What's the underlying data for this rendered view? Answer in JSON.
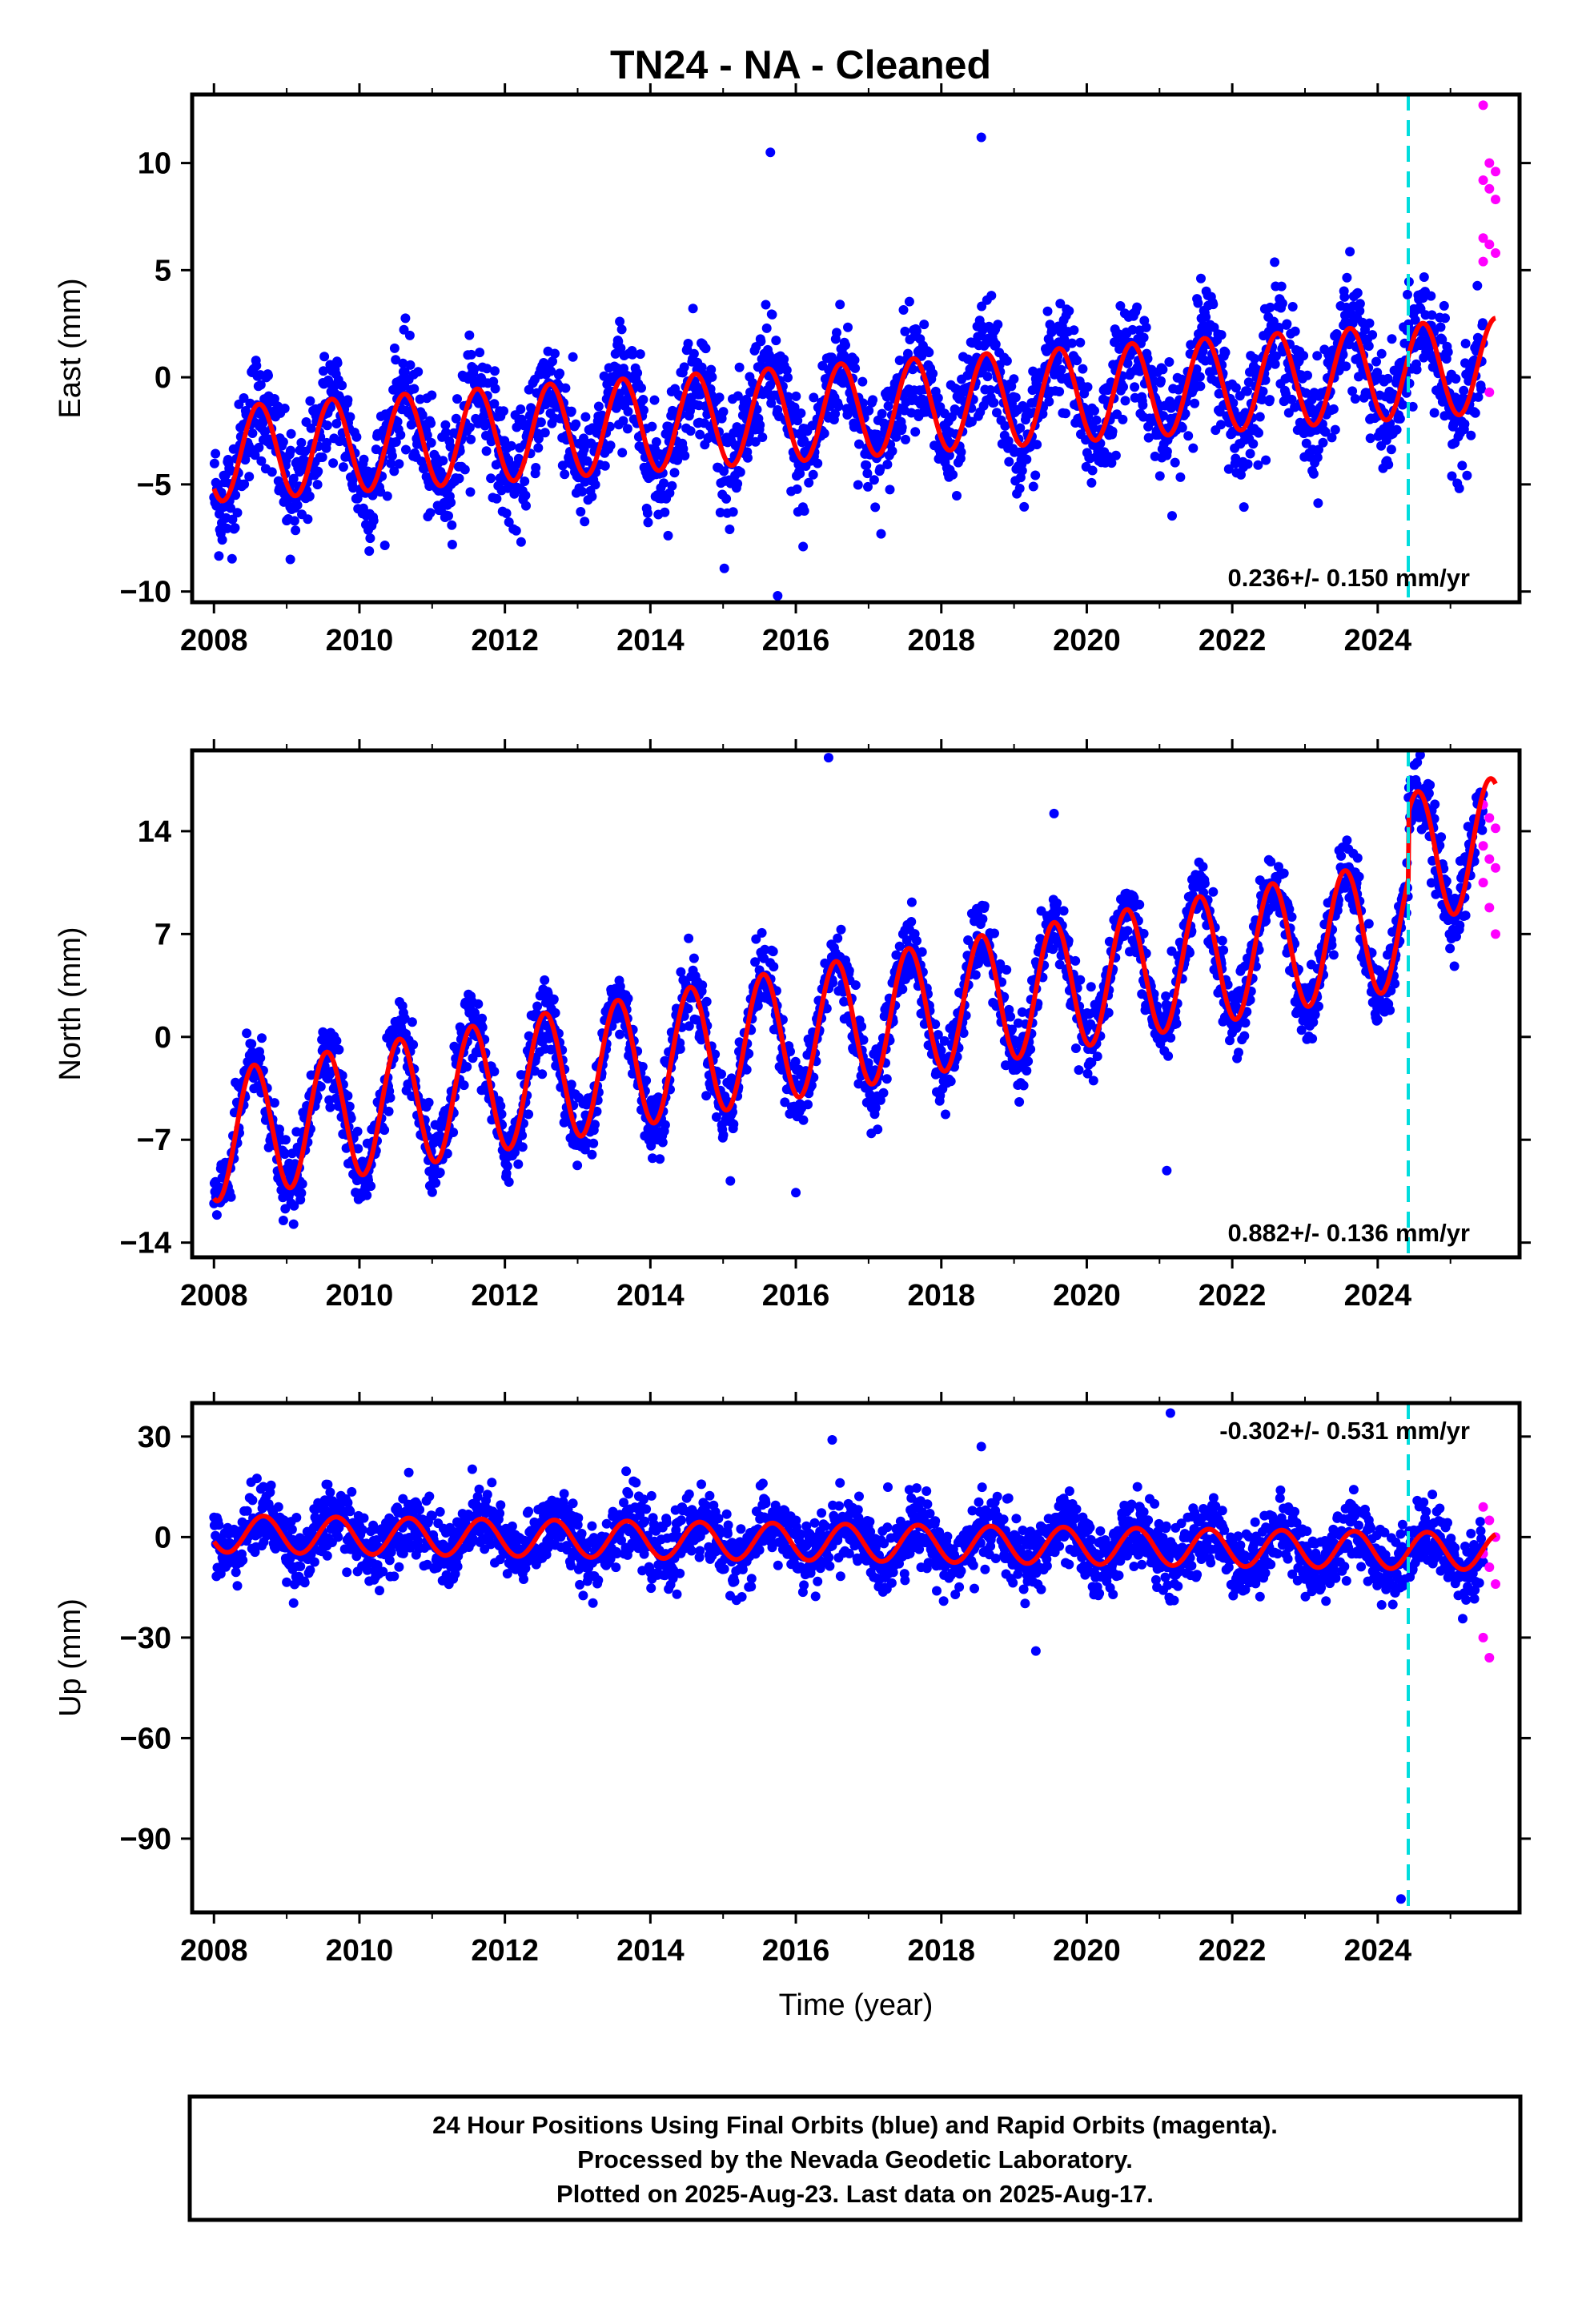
{
  "title": "TN24  - NA - Cleaned",
  "footer": {
    "line1": "24 Hour Positions Using Final Orbits (blue) and Rapid Orbits (magenta).",
    "line2": "Processed by the Nevada Geodetic Laboratory.",
    "line3": "Plotted on 2025-Aug-23. Last data on 2025-Aug-17."
  },
  "colors": {
    "final": "#0000ff",
    "rapid": "#ff00ff",
    "model": "#ff0000",
    "event": "#00dddd"
  },
  "chart_data": [
    {
      "type": "scatter",
      "component": "east",
      "ylabel": "East (mm)",
      "xlabel": "",
      "xlim": [
        2007.7,
        2025.95
      ],
      "ylim": [
        -10.5,
        13.2
      ],
      "xticks": [
        2008,
        2010,
        2012,
        2014,
        2016,
        2018,
        2020,
        2022,
        2024
      ],
      "yticks": [
        -10,
        -5,
        0,
        5,
        10
      ],
      "xtick_labels": [
        "2008",
        "2010",
        "2012",
        "2014",
        "2016",
        "2018",
        "2020",
        "2022",
        "2024"
      ],
      "ytick_labels": [
        "−10",
        "−5",
        "0",
        "5",
        "10"
      ],
      "rate_label": "0.236+/- 0.150 mm/yr",
      "rate_position": "bottom-right",
      "event_line_x": 2024.42,
      "trend": {
        "y2008": -3.6,
        "slope": 0.236,
        "amplitude": 2.2,
        "peak_phase": 0.62
      },
      "outliers": [
        [
          2015.65,
          10.5
        ],
        [
          2018.55,
          11.2
        ],
        [
          2015.75,
          -10.2
        ],
        [
          2016.1,
          -7.9
        ],
        [
          2009.05,
          -8.5
        ]
      ],
      "series": [
        {
          "name": "Final Orbits (blue)",
          "x_range": [
            2008.0,
            2025.45
          ],
          "scatter_sd": 1.3
        },
        {
          "name": "Rapid Orbits (magenta)",
          "x_range": [
            2025.45,
            2025.62
          ],
          "y_points": [
            12.7,
            10.0,
            9.6,
            9.2,
            8.8,
            8.3,
            6.5,
            6.2,
            5.8,
            5.4,
            -0.7
          ]
        }
      ]
    },
    {
      "type": "scatter",
      "component": "north",
      "ylabel": "North (mm)",
      "xlabel": "",
      "xlim": [
        2007.7,
        2025.95
      ],
      "ylim": [
        -15,
        19.5
      ],
      "xticks": [
        2008,
        2010,
        2012,
        2014,
        2016,
        2018,
        2020,
        2022,
        2024
      ],
      "yticks": [
        -14,
        -7,
        0,
        7,
        14
      ],
      "xtick_labels": [
        "2008",
        "2010",
        "2012",
        "2014",
        "2016",
        "2018",
        "2020",
        "2022",
        "2024"
      ],
      "ytick_labels": [
        "−14",
        "−7",
        "0",
        "7",
        "14"
      ],
      "rate_label": "0.882+/- 0.136 mm/yr",
      "rate_position": "bottom-right",
      "event_line_x": 2024.42,
      "trend": {
        "y2008": -6.8,
        "slope": 0.882,
        "amplitude": 4.4,
        "peak_phase": 0.55,
        "offset_at": 2024.42,
        "offset": 4.5
      },
      "outliers": [
        [
          2016.45,
          19.0
        ],
        [
          2019.55,
          15.2
        ],
        [
          2021.1,
          -9.1
        ],
        [
          2016.0,
          -10.6
        ],
        [
          2015.1,
          -9.8
        ]
      ],
      "series": [
        {
          "name": "Final Orbits (blue)",
          "x_range": [
            2008.0,
            2025.45
          ],
          "scatter_sd": 1.2
        },
        {
          "name": "Rapid Orbits (magenta)",
          "x_range": [
            2025.45,
            2025.62
          ],
          "y_points": [
            15.8,
            14.9,
            14.2,
            13.0,
            12.1,
            11.5,
            10.5,
            8.8,
            7.0
          ]
        }
      ]
    },
    {
      "type": "scatter",
      "component": "up",
      "ylabel": "Up (mm)",
      "xlabel": "Time (year)",
      "xlim": [
        2007.7,
        2025.95
      ],
      "ylim": [
        -112,
        40
      ],
      "xticks": [
        2008,
        2010,
        2012,
        2014,
        2016,
        2018,
        2020,
        2022,
        2024
      ],
      "yticks": [
        -90,
        -60,
        -30,
        0,
        30
      ],
      "xtick_labels": [
        "2008",
        "2010",
        "2012",
        "2014",
        "2016",
        "2018",
        "2020",
        "2022",
        "2024"
      ],
      "ytick_labels": [
        "−90",
        "−60",
        "−30",
        "0",
        "30"
      ],
      "rate_label": "-0.302+/- 0.531 mm/yr",
      "rate_position": "top-right",
      "event_line_x": 2024.42,
      "trend": {
        "y2008": 1.0,
        "slope": -0.302,
        "amplitude": 5.5,
        "peak_phase": 0.68
      },
      "outliers": [
        [
          2021.15,
          37.0
        ],
        [
          2024.32,
          -108.0
        ],
        [
          2019.3,
          -34.0
        ],
        [
          2018.55,
          27.0
        ],
        [
          2016.5,
          29.0
        ]
      ],
      "series": [
        {
          "name": "Final Orbits (blue)",
          "x_range": [
            2008.0,
            2025.45
          ],
          "scatter_sd": 5.0
        },
        {
          "name": "Rapid Orbits (magenta)",
          "x_range": [
            2025.45,
            2025.62
          ],
          "y_points": [
            9.0,
            5.0,
            0.0,
            -5.0,
            -9.0,
            -14.0,
            -30.0,
            -36.0
          ]
        }
      ]
    }
  ]
}
